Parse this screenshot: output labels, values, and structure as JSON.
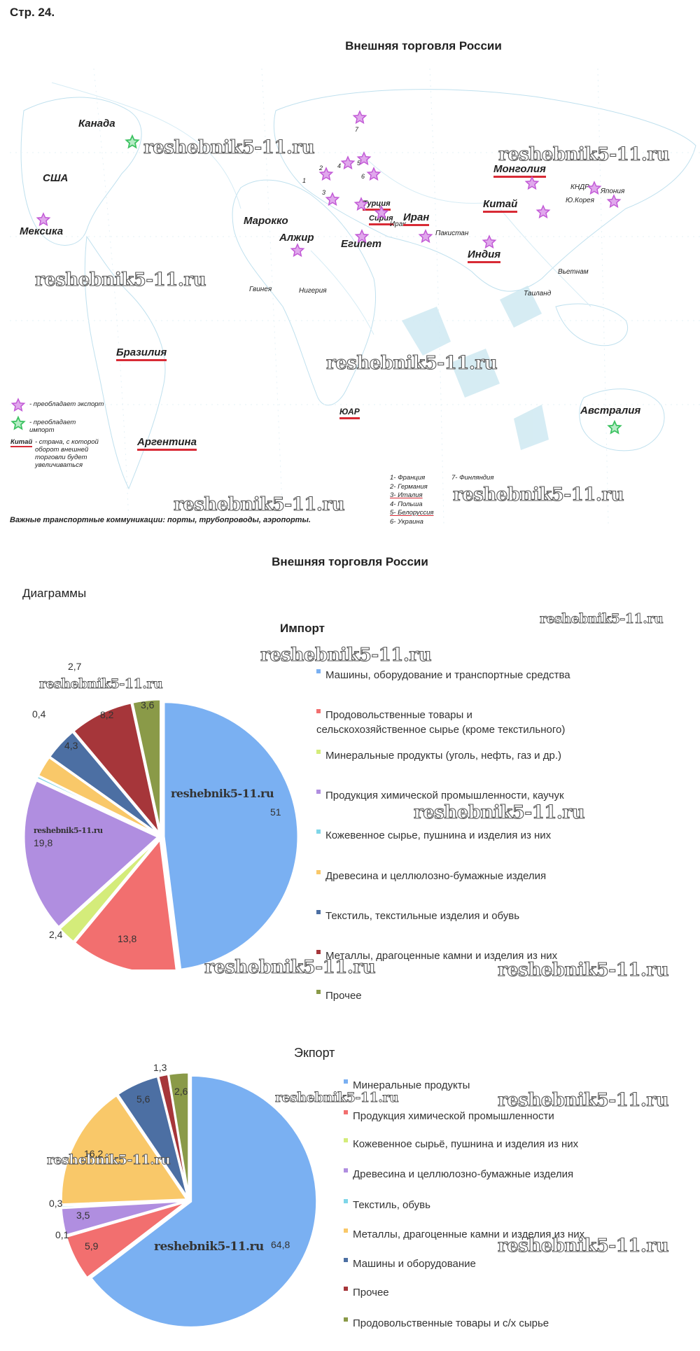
{
  "page_label": "Стр. 24.",
  "map": {
    "title": "Внешняя торговля России",
    "countries": {
      "canada": "Канада",
      "usa": "США",
      "mexico": "Мексика",
      "brazil": "Бразилия",
      "argentina": "Аргентина",
      "morocco": "Марокко",
      "algeria": "Алжир",
      "egypt": "Египет",
      "guinea": "Гвинея",
      "nigeria": "Нигерия",
      "sar": "ЮАР",
      "turkey": "Турция",
      "syria": "Сирия",
      "iraq": "Ирак",
      "iran": "Иран",
      "pakistan": "Пакистан",
      "india": "Индия",
      "china": "Китай",
      "mongolia": "Монголия",
      "dprk": "КНДР",
      "japan": "Япония",
      "south_korea": "Ю.Корея",
      "vietnam": "Вьетнам",
      "thailand": "Таиланд",
      "australia": "Австралия"
    },
    "numbers": [
      "1",
      "2",
      "3",
      "4",
      "5",
      "6",
      "7"
    ],
    "legend": {
      "export": "- преобладает экспорт",
      "import": "- преобладает импорт",
      "example_word": "Китай",
      "future": "- страна, с которой оборот внешней торговли будет увеличиваться"
    },
    "key": [
      "1- Франция",
      "2- Германия",
      "3- Италия",
      "4- Польша",
      "5- Белоруссия",
      "6- Украина",
      "7- Финляндия"
    ],
    "transport_note": "Важные транспортные коммуникации: порты, трубопроводы, аэропорты.",
    "colors": {
      "export_star": "#c25ad6",
      "import_star": "#3cc261",
      "underline": "#d82a35"
    }
  },
  "section_title": "Внешняя торговля России",
  "diagrams_label": "Диаграммы",
  "watermark": "reshebnik5-11.ru",
  "chart_data": [
    {
      "type": "pie",
      "title": "Импорт",
      "categories": [
        "Машины, оборудование и транспортные средства",
        "Продовольственные товары и сельскохозяйственное сырье (кроме текстильного)",
        "Минеральные продукты (уголь, нефть, газ и др.)",
        "Продукция химической промышленности, каучук",
        "Кожевенное сырье, пушнина и изделия из них",
        "Древесина и целлюлозно-бумажные изделия",
        "Текстиль, текстильные изделия и обувь",
        "Металлы, драгоценные камни и изделия из них",
        "Прочее"
      ],
      "values": [
        51,
        13.8,
        2.4,
        19.8,
        0.4,
        2.7,
        4.3,
        8.2,
        3.6
      ],
      "labels": [
        "51",
        "13,8",
        "2,4",
        "19,8",
        "0,4",
        "2,7",
        "4,3",
        "8,2",
        "3,6"
      ],
      "colors": [
        "#7ab0f2",
        "#f26f6f",
        "#d4ec7a",
        "#b08ee0",
        "#7fd6e8",
        "#f9c869",
        "#4c6fa3",
        "#a6363a",
        "#8a9a48"
      ],
      "legend_position": "right"
    },
    {
      "type": "pie",
      "title": "Экпорт",
      "categories": [
        "Минеральные продукты",
        "Продукция химической промышленности",
        "Кожевенное сырьё, пушнина и изделия из них",
        "Древесина и целлюлозно-бумажные изделия",
        "Текстиль, обувь",
        "Металлы, драгоценные камни и изделия из них",
        "Машины и оборудование",
        "Прочее",
        "Продовольственные товары и с/х сырье"
      ],
      "values": [
        64.8,
        5.9,
        0.1,
        3.5,
        0.3,
        16.2,
        5.6,
        1.3,
        2.6
      ],
      "labels": [
        "64,8",
        "5,9",
        "0,1",
        "3,5",
        "0,3",
        "16,2",
        "5,6",
        "1,3",
        "2,6"
      ],
      "colors": [
        "#7ab0f2",
        "#f26f6f",
        "#d4ec7a",
        "#b08ee0",
        "#7fd6e8",
        "#f9c869",
        "#4c6fa3",
        "#a6363a",
        "#8a9a48"
      ],
      "legend_position": "right"
    }
  ]
}
